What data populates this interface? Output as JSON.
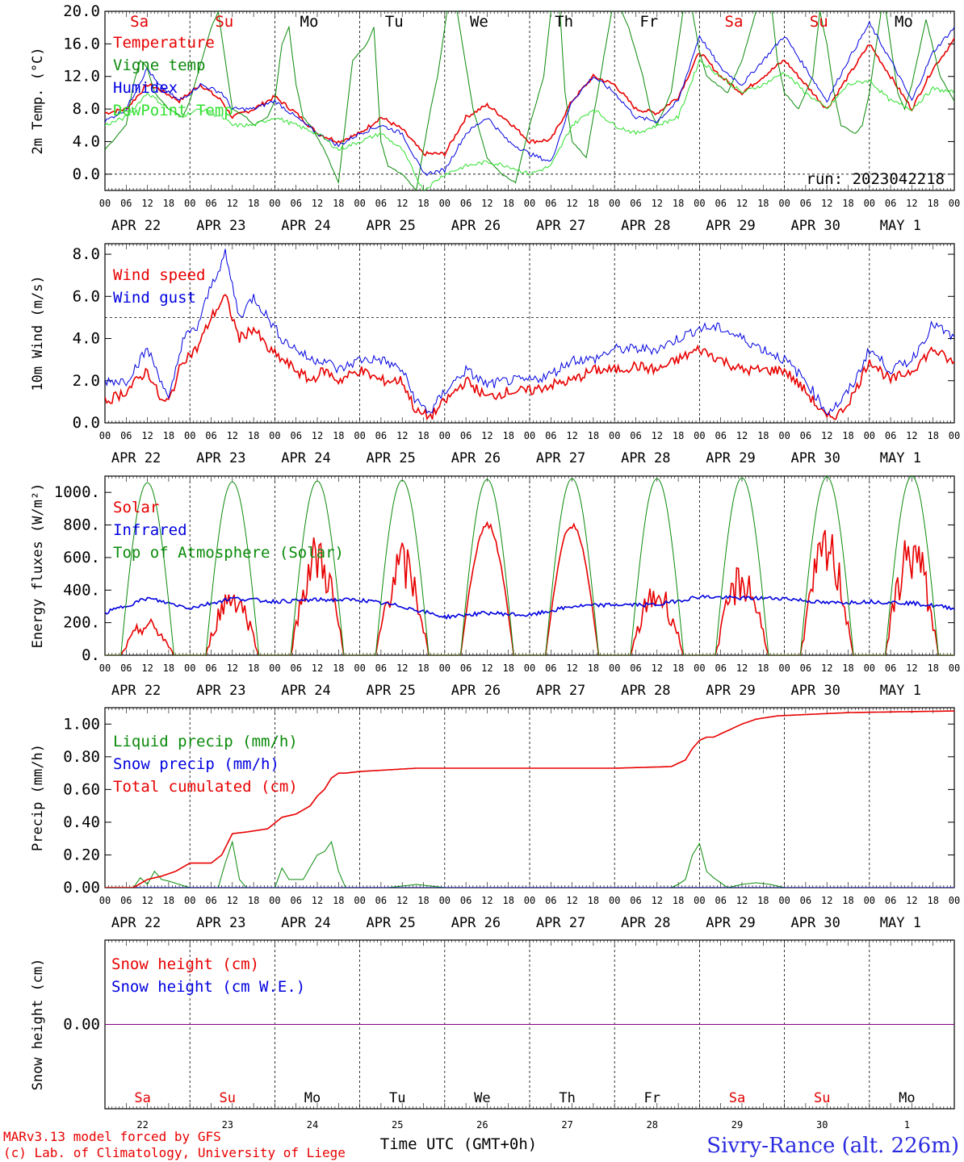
{
  "meteogram": {
    "footer_left_1": "MARv3.13 model forced by GFS",
    "footer_left_2": "(c) Lab. of Climatology, University of Liege",
    "footer_center": "Time UTC (GMT+0h)",
    "footer_right": "Sivry-Rance (alt. 226m)",
    "date_labels": [
      "APR 22",
      "APR 23",
      "APR 24",
      "APR 25",
      "APR 26",
      "APR 27",
      "APR 28",
      "APR 29",
      "APR 30",
      "MAY  1"
    ],
    "hour_labels": [
      "00",
      "06",
      "12",
      "18"
    ],
    "final_hour_label": "00",
    "weekdays": [
      {
        "label": "Sa",
        "color": "#e00000"
      },
      {
        "label": "Su",
        "color": "#e00000"
      },
      {
        "label": "Mo",
        "color": "#000000"
      },
      {
        "label": "Tu",
        "color": "#000000"
      },
      {
        "label": "We",
        "color": "#000000"
      },
      {
        "label": "Th",
        "color": "#000000"
      },
      {
        "label": "Fr",
        "color": "#000000"
      },
      {
        "label": "Sa",
        "color": "#e00000"
      },
      {
        "label": "Su",
        "color": "#e00000"
      },
      {
        "label": "Mo",
        "color": "#000000"
      }
    ],
    "day_numbers": [
      "22",
      "23",
      "24",
      "25",
      "26",
      "27",
      "28",
      "29",
      "30",
      "1"
    ],
    "colors": {
      "red": "#e80000",
      "blue": "#0000e0",
      "green": "#0a8a0a",
      "lightgreen": "#30e030",
      "purple": "#800080"
    }
  },
  "chart_data": [
    {
      "type": "line",
      "ylabel": "2m Temp. (°C)",
      "yticks": [
        "20.0",
        "16.0",
        "12.0",
        "8.0",
        "4.0",
        "0.0"
      ],
      "ylim": [
        -2,
        20
      ],
      "annotation": "run: 2023042218",
      "series": [
        {
          "name": "Temperature",
          "color": "#e80000",
          "x": [
            0,
            6,
            12,
            15,
            21,
            27,
            33,
            36,
            42,
            48,
            54,
            60,
            66,
            72,
            78,
            84,
            90,
            96,
            102,
            108,
            114,
            120,
            126,
            132,
            138,
            144,
            150,
            156,
            162,
            168,
            174,
            180,
            186,
            192,
            198,
            204,
            210,
            216,
            222,
            228,
            234,
            240
          ],
          "values": [
            7.5,
            8,
            11,
            10.5,
            9,
            11,
            9,
            7,
            8,
            9.5,
            7.5,
            5,
            4,
            5,
            7,
            5.5,
            2.5,
            2.5,
            7,
            8.5,
            6.5,
            4,
            4.2,
            9,
            12,
            11,
            8,
            7.5,
            9.5,
            15,
            12,
            10,
            12,
            14,
            11,
            8,
            12,
            16,
            12,
            8,
            13,
            16.5
          ]
        },
        {
          "name": "Vigne temp",
          "color": "#0a8a0a",
          "x": [
            0,
            6,
            8,
            10,
            12,
            14,
            16,
            18,
            22,
            24,
            26,
            30,
            32,
            34,
            36,
            40,
            42,
            46,
            48,
            50,
            52,
            54,
            56,
            58,
            62,
            66,
            70,
            74,
            76,
            78,
            80,
            84,
            88,
            92,
            94,
            96,
            98,
            104,
            108,
            112,
            116,
            120,
            124,
            126,
            128,
            130,
            132,
            136,
            140,
            144,
            148,
            152,
            154,
            156,
            160,
            164,
            166,
            168,
            170,
            176,
            180,
            184,
            188,
            190,
            192,
            196,
            200,
            202,
            204,
            206,
            208,
            212,
            214,
            216,
            220,
            224,
            226,
            228,
            232,
            236,
            240
          ],
          "values": [
            3,
            6,
            11,
            14,
            13,
            10,
            9,
            8,
            7,
            9,
            12,
            18,
            20,
            14,
            8,
            7,
            6,
            7,
            9,
            16,
            18,
            11,
            7,
            6,
            3,
            -1,
            14,
            16,
            18,
            4,
            1,
            0,
            -2,
            8,
            12,
            18,
            24,
            8,
            2,
            0,
            -1,
            6,
            12,
            20,
            24,
            10,
            4,
            2,
            12,
            22,
            18,
            12,
            8,
            6,
            10,
            22,
            20,
            15,
            12,
            10,
            14,
            20,
            22,
            14,
            10,
            8,
            12,
            20,
            16,
            10,
            6,
            5,
            6,
            10,
            22,
            10,
            8,
            11,
            19,
            12,
            9
          ]
        },
        {
          "name": "Humidex",
          "color": "#0000e0",
          "x": [
            0,
            6,
            12,
            15,
            21,
            27,
            33,
            36,
            42,
            48,
            54,
            60,
            66,
            72,
            78,
            84,
            90,
            96,
            102,
            108,
            114,
            120,
            126,
            132,
            138,
            144,
            150,
            156,
            162,
            168,
            174,
            180,
            186,
            192,
            198,
            204,
            210,
            216,
            222,
            228,
            234,
            240
          ],
          "values": [
            6.5,
            8,
            13,
            11,
            9,
            11,
            10,
            8,
            8,
            9,
            7,
            5,
            3.5,
            5,
            6,
            5,
            0,
            0.5,
            5,
            7,
            4,
            2.5,
            1.5,
            9,
            12,
            10,
            7,
            6.5,
            9,
            17,
            13,
            11,
            14,
            17,
            13,
            9,
            14,
            18.5,
            14,
            9,
            15,
            18
          ]
        },
        {
          "name": "DewPoint Temp",
          "color": "#30e030",
          "x": [
            0,
            6,
            12,
            15,
            21,
            27,
            33,
            36,
            42,
            48,
            54,
            60,
            66,
            72,
            78,
            84,
            90,
            96,
            102,
            108,
            114,
            120,
            126,
            132,
            138,
            144,
            150,
            156,
            162,
            168,
            174,
            180,
            186,
            192,
            198,
            204,
            210,
            216,
            222,
            228,
            234,
            240
          ],
          "values": [
            6,
            7,
            10,
            9,
            7,
            8,
            7,
            6,
            6,
            7,
            6,
            5,
            3,
            4,
            5,
            3,
            -2,
            0,
            1,
            1.5,
            1,
            0,
            1,
            6,
            8,
            6,
            5,
            6,
            7,
            14,
            12,
            10,
            11,
            12.5,
            10,
            8,
            11,
            11.5,
            9,
            8,
            10.5,
            10
          ]
        }
      ]
    },
    {
      "type": "line",
      "ylabel": "10m Wind (m/s)",
      "yticks": [
        "8.0",
        "6.0",
        "4.0",
        "2.0",
        "0.0"
      ],
      "ylim": [
        0,
        8.5
      ],
      "ref_line": 5,
      "series": [
        {
          "name": "Wind speed",
          "color": "#e80000",
          "x": [
            0,
            6,
            12,
            16,
            18,
            22,
            26,
            30,
            34,
            38,
            42,
            46,
            50,
            54,
            58,
            62,
            66,
            72,
            78,
            84,
            88,
            92,
            96,
            102,
            108,
            114,
            120,
            126,
            132,
            138,
            144,
            150,
            156,
            162,
            168,
            174,
            180,
            186,
            192,
            198,
            204,
            208,
            212,
            216,
            222,
            228,
            234,
            240
          ],
          "values": [
            1,
            1.5,
            2.5,
            1,
            1,
            3,
            3.5,
            5,
            6,
            4,
            4.5,
            3.5,
            3,
            2.5,
            2,
            2.5,
            2,
            2.5,
            2,
            2,
            0.5,
            0.3,
            1,
            2,
            1.2,
            1.5,
            1.5,
            1.8,
            2,
            2.5,
            2.5,
            2.7,
            2.5,
            3,
            3.5,
            3,
            2.5,
            2.5,
            2.5,
            1.5,
            0.2,
            0.5,
            1.5,
            3,
            2,
            2.5,
            3.5,
            2.8
          ]
        },
        {
          "name": "Wind gust",
          "color": "#0000e0",
          "x": [
            0,
            6,
            12,
            16,
            18,
            22,
            26,
            30,
            34,
            38,
            42,
            46,
            50,
            54,
            58,
            62,
            66,
            72,
            78,
            84,
            88,
            92,
            96,
            102,
            108,
            114,
            120,
            126,
            132,
            138,
            144,
            150,
            156,
            162,
            168,
            174,
            180,
            186,
            192,
            198,
            204,
            208,
            212,
            216,
            222,
            228,
            234,
            240
          ],
          "values": [
            2,
            2,
            3.5,
            2,
            1,
            4,
            4.5,
            6.5,
            8,
            5,
            6,
            5,
            4,
            3.5,
            3,
            3,
            2.5,
            3,
            3,
            2.5,
            1,
            0.5,
            1.5,
            2.5,
            1.8,
            2,
            2,
            2.3,
            3,
            3,
            3.5,
            3.5,
            3.5,
            4,
            4.5,
            4.5,
            4,
            3.5,
            3,
            2,
            0.5,
            1,
            2,
            3.5,
            2.5,
            3,
            4.7,
            4
          ]
        }
      ]
    },
    {
      "type": "line",
      "ylabel": "Energy fluxes (W/m²)",
      "yticks": [
        "1000.",
        "800.",
        "600.",
        "400.",
        "200.",
        "0."
      ],
      "ylim": [
        0,
        1100
      ],
      "series": [
        {
          "name": "Solar",
          "color": "#e80000",
          "peaks": [
            230,
            460,
            760,
            700,
            820,
            820,
            470,
            580,
            800,
            800
          ]
        },
        {
          "name": "Infrared",
          "color": "#0000e0",
          "x": [
            0,
            12,
            24,
            36,
            48,
            60,
            72,
            84,
            96,
            108,
            120,
            132,
            144,
            156,
            168,
            180,
            192,
            204,
            216,
            228,
            240
          ],
          "values": [
            260,
            350,
            290,
            350,
            330,
            340,
            340,
            300,
            235,
            260,
            245,
            300,
            310,
            310,
            360,
            350,
            350,
            320,
            330,
            320,
            290
          ]
        },
        {
          "name": "Top of Atmosphere (Solar)",
          "color": "#0a8a0a",
          "peaks": [
            1060,
            1065,
            1070,
            1075,
            1080,
            1085,
            1085,
            1090,
            1095,
            1100
          ]
        }
      ]
    },
    {
      "type": "line",
      "ylabel": "Precip (mm/h)",
      "yticks": [
        "1.00",
        "0.80",
        "0.60",
        "0.40",
        "0.20",
        "0.00"
      ],
      "ylim": [
        0,
        1.1
      ],
      "series": [
        {
          "name": "Liquid precip (mm/h)",
          "color": "#0a8a0a",
          "x": [
            0,
            8,
            10,
            12,
            14,
            16,
            18,
            24,
            32,
            34,
            36,
            38,
            40,
            48,
            50,
            52,
            56,
            60,
            62,
            64,
            66,
            68,
            72,
            80,
            88,
            96,
            104,
            112,
            120,
            140,
            160,
            162,
            164,
            166,
            168,
            170,
            172,
            176,
            180,
            184,
            188,
            192,
            196,
            200,
            240
          ],
          "values": [
            0,
            0,
            0.06,
            0.02,
            0.1,
            0.05,
            0.04,
            0,
            0,
            0.15,
            0.28,
            0.05,
            0,
            0,
            0.12,
            0.05,
            0.05,
            0.2,
            0.22,
            0.28,
            0.1,
            0,
            0,
            0,
            0.02,
            0,
            0,
            0,
            0,
            0,
            0,
            0.02,
            0.05,
            0.2,
            0.27,
            0.1,
            0.06,
            0,
            0.02,
            0.03,
            0.02,
            0,
            0,
            0,
            0
          ]
        },
        {
          "name": "Snow precip (mm/h)",
          "color": "#0000e0",
          "x": [
            0,
            240
          ],
          "values": [
            0,
            0
          ]
        },
        {
          "name": "Total cumulated (cm)",
          "color": "#e80000",
          "x": [
            0,
            8,
            12,
            16,
            20,
            24,
            30,
            33,
            36,
            40,
            46,
            50,
            54,
            58,
            60,
            62,
            64,
            66,
            68,
            72,
            80,
            88,
            96,
            108,
            120,
            144,
            160,
            164,
            166,
            168,
            170,
            172,
            174,
            176,
            180,
            184,
            190,
            200,
            210,
            240
          ],
          "values": [
            0,
            0,
            0.05,
            0.07,
            0.1,
            0.15,
            0.15,
            0.2,
            0.33,
            0.34,
            0.36,
            0.43,
            0.45,
            0.5,
            0.56,
            0.6,
            0.67,
            0.7,
            0.7,
            0.71,
            0.72,
            0.73,
            0.73,
            0.73,
            0.73,
            0.73,
            0.74,
            0.78,
            0.85,
            0.9,
            0.92,
            0.92,
            0.94,
            0.96,
            1.0,
            1.03,
            1.05,
            1.06,
            1.07,
            1.08
          ]
        }
      ]
    },
    {
      "type": "line",
      "ylabel": "Snow height (cm)",
      "yticks": [
        "0.00"
      ],
      "series": [
        {
          "name": "Snow height (cm)",
          "color": "#e80000",
          "x": [
            0,
            240
          ],
          "values": [
            0,
            0
          ]
        },
        {
          "name": "Snow height (cm W.E.)",
          "color": "#0000e0",
          "x": [
            0,
            240
          ],
          "values": [
            0,
            0
          ]
        }
      ]
    }
  ]
}
